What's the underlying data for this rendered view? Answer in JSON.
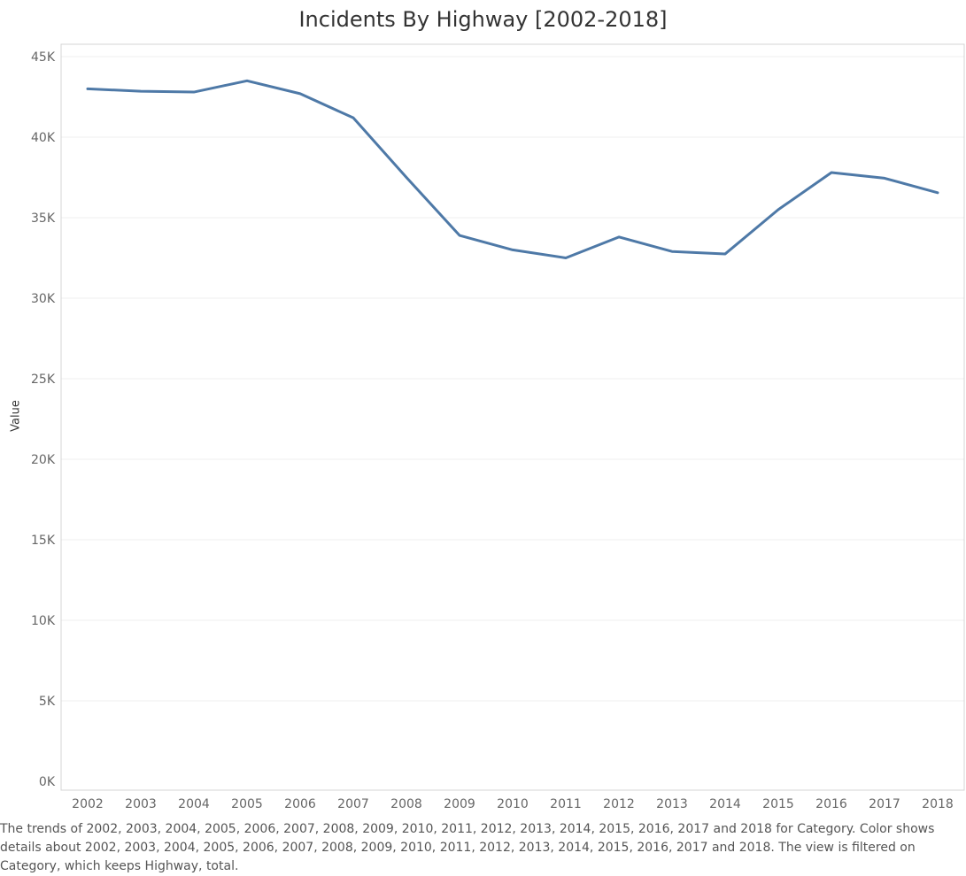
{
  "chart_data": {
    "type": "line",
    "title": "Incidents By Highway [2002-2018]",
    "ylabel": "Value",
    "xlabel": "",
    "ylim": [
      0,
      45000
    ],
    "y_ticks": [
      0,
      5000,
      10000,
      15000,
      20000,
      25000,
      30000,
      35000,
      40000,
      45000
    ],
    "y_tick_labels": [
      "0K",
      "5K",
      "10K",
      "15K",
      "20K",
      "25K",
      "30K",
      "35K",
      "40K",
      "45K"
    ],
    "categories": [
      "2002",
      "2003",
      "2004",
      "2005",
      "2006",
      "2007",
      "2008",
      "2009",
      "2010",
      "2011",
      "2012",
      "2013",
      "2014",
      "2015",
      "2016",
      "2017",
      "2018"
    ],
    "series": [
      {
        "values": [
          43000,
          42850,
          42800,
          43500,
          42700,
          41200,
          37500,
          33900,
          33000,
          32500,
          33800,
          32900,
          32750,
          35500,
          37800,
          37450,
          36550
        ],
        "color": "#4e79a7"
      }
    ],
    "grid": true,
    "legend": "none"
  },
  "caption": "The trends of 2002, 2003, 2004, 2005, 2006, 2007, 2008, 2009, 2010, 2011, 2012, 2013, 2014, 2015, 2016, 2017 and 2018 for Category.  Color shows details about 2002, 2003, 2004, 2005, 2006, 2007, 2008, 2009, 2010, 2011, 2012, 2013, 2014, 2015, 2016, 2017 and 2018. The view is filtered on Category, which keeps Highway, total."
}
